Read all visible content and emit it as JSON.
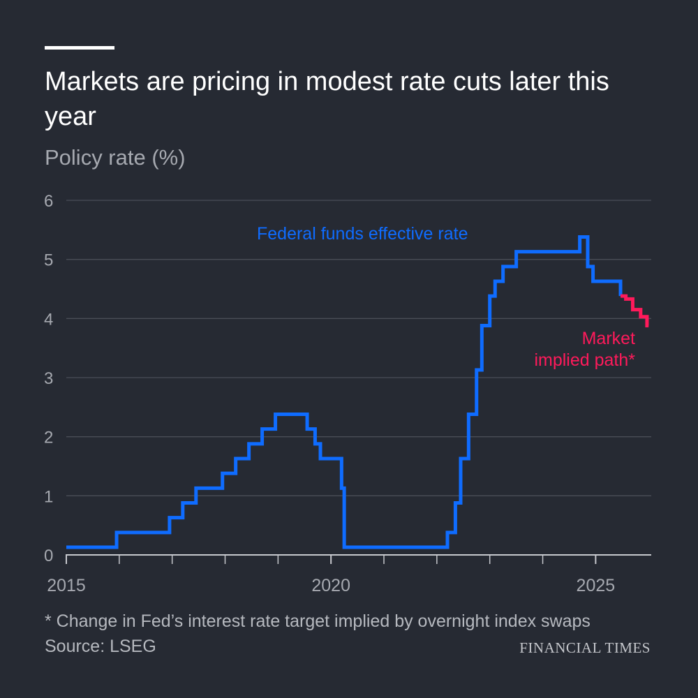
{
  "title": "Markets are pricing in modest rate cuts later this year",
  "subtitle": "Policy rate (%)",
  "footnote": "* Change in Fed’s interest rate target implied by overnight index swaps",
  "source": "Source: LSEG",
  "brand": "FINANCIAL TIMES",
  "colors": {
    "background": "#262a33",
    "grid": "#4a4e57",
    "fed": "#0f6cff",
    "market": "#ff1a5b",
    "tick_text": "#a6a9b0"
  },
  "chart_data": {
    "type": "line",
    "title": "Markets are pricing in modest rate cuts later this year",
    "ylabel": "Policy rate (%)",
    "xlabel": "",
    "xlim": [
      2015.0,
      2026.05
    ],
    "ylim": [
      0,
      6
    ],
    "yticks": [
      0,
      1,
      2,
      3,
      4,
      5,
      6
    ],
    "xticks": [
      2015,
      2020,
      2025
    ],
    "minor_xticks": [
      2016,
      2017,
      2018,
      2019,
      2021,
      2022,
      2023,
      2024
    ],
    "grid": true,
    "series": [
      {
        "name": "Federal funds effective rate",
        "step": true,
        "x": [
          2015.0,
          2015.95,
          2016.95,
          2017.2,
          2017.45,
          2017.95,
          2018.2,
          2018.45,
          2018.7,
          2018.95,
          2019.55,
          2019.7,
          2019.8,
          2020.2,
          2020.25,
          2022.2,
          2022.35,
          2022.45,
          2022.6,
          2022.75,
          2022.85,
          2023.0,
          2023.1,
          2023.25,
          2023.5,
          2024.7,
          2024.85,
          2024.95
        ],
        "values": [
          0.13,
          0.38,
          0.63,
          0.88,
          1.13,
          1.38,
          1.63,
          1.88,
          2.13,
          2.38,
          2.13,
          1.88,
          1.63,
          1.13,
          0.13,
          0.38,
          0.88,
          1.63,
          2.38,
          3.13,
          3.88,
          4.38,
          4.63,
          4.88,
          5.13,
          5.38,
          4.88,
          4.63
        ],
        "end_x": 2025.47,
        "end_value": 4.38
      },
      {
        "name": "Market implied path*",
        "step": true,
        "x": [
          2025.47,
          2025.57,
          2025.7,
          2025.85,
          2025.97
        ],
        "values": [
          4.38,
          4.33,
          4.15,
          4.03,
          3.88
        ],
        "end_x": 2026.0,
        "end_value": 3.88
      }
    ],
    "annotations": [
      {
        "label_lines": [
          "Federal funds effective rate"
        ],
        "series": "Federal funds effective rate"
      },
      {
        "label_lines": [
          "Market",
          "implied path*"
        ],
        "series": "Market implied path*"
      }
    ]
  }
}
